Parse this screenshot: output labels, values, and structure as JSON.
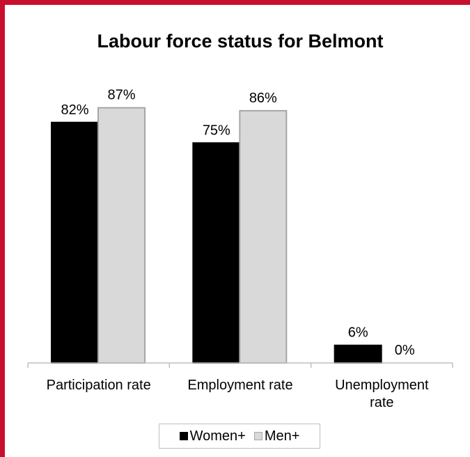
{
  "chart_data": {
    "type": "bar",
    "title": "Labour force status for Belmont",
    "xlabel": "",
    "ylabel": "",
    "ylim": [
      0,
      100
    ],
    "grid": false,
    "legend_position": "bottom",
    "categories": [
      [
        "Participation rate"
      ],
      [
        "Employment rate"
      ],
      [
        "Unemployment",
        "rate"
      ]
    ],
    "series": [
      {
        "name": "Women+",
        "values": [
          82,
          75,
          6
        ],
        "labels": [
          "82%",
          "75%",
          "6%"
        ],
        "color": "#000000",
        "stroke": "#000000"
      },
      {
        "name": "Men+",
        "values": [
          87,
          86,
          0
        ],
        "labels": [
          "87%",
          "86%",
          "0%"
        ],
        "color": "#d9d9d9",
        "stroke": "#a6a6a6"
      }
    ]
  },
  "colors": {
    "frame": "#c8102e",
    "axis": "#bfbfbf"
  }
}
